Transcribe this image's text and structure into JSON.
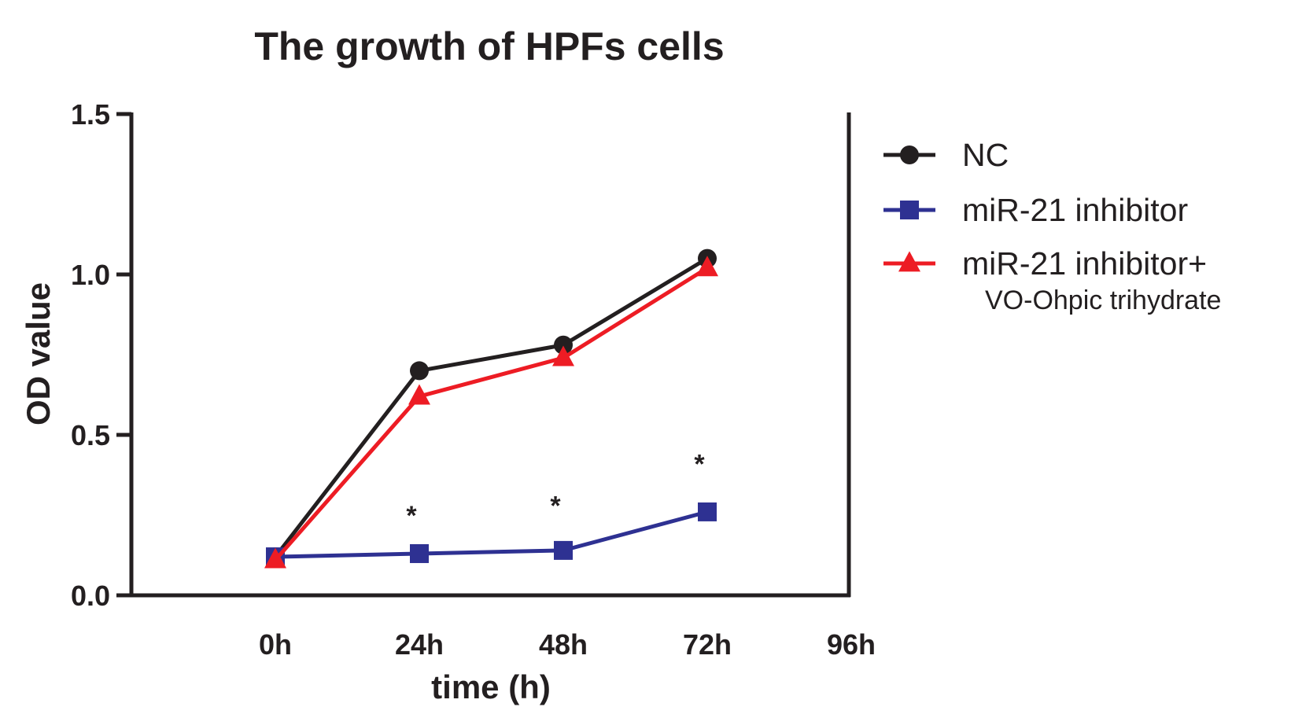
{
  "chart_data": {
    "type": "line",
    "title": "The growth of HPFs cells",
    "xlabel": "time (h)",
    "ylabel": "OD value",
    "categories": [
      "0h",
      "24h",
      "48h",
      "72h",
      "96h"
    ],
    "x_values": [
      0,
      24,
      48,
      72,
      96
    ],
    "xlim": [
      -24,
      96
    ],
    "ylim": [
      0,
      1.5
    ],
    "yticks": [
      0.0,
      0.5,
      1.0,
      1.5
    ],
    "ytick_labels": [
      "0.0",
      "0.5",
      "1.0",
      "1.5"
    ],
    "grid": false,
    "legend_position": "right",
    "series": [
      {
        "name": "NC",
        "color": "#231f20",
        "marker": "circle",
        "x": [
          0,
          24,
          48,
          72
        ],
        "values": [
          0.12,
          0.7,
          0.78,
          1.05
        ]
      },
      {
        "name": "miR-21 inhibitor",
        "color": "#2e3192",
        "marker": "square",
        "x": [
          0,
          24,
          48,
          72
        ],
        "values": [
          0.12,
          0.13,
          0.14,
          0.26
        ]
      },
      {
        "name": "miR-21 inhibitor+",
        "name_line2": "VO-Ohpic trihydrate",
        "color": "#ed1c24",
        "marker": "triangle",
        "x": [
          0,
          24,
          48,
          72
        ],
        "values": [
          0.11,
          0.62,
          0.74,
          1.02
        ]
      }
    ],
    "annotations": [
      {
        "text": "*",
        "x": 24,
        "y": 0.27
      },
      {
        "text": "*",
        "x": 48,
        "y": 0.3
      },
      {
        "text": "*",
        "x": 72,
        "y": 0.43
      }
    ]
  }
}
